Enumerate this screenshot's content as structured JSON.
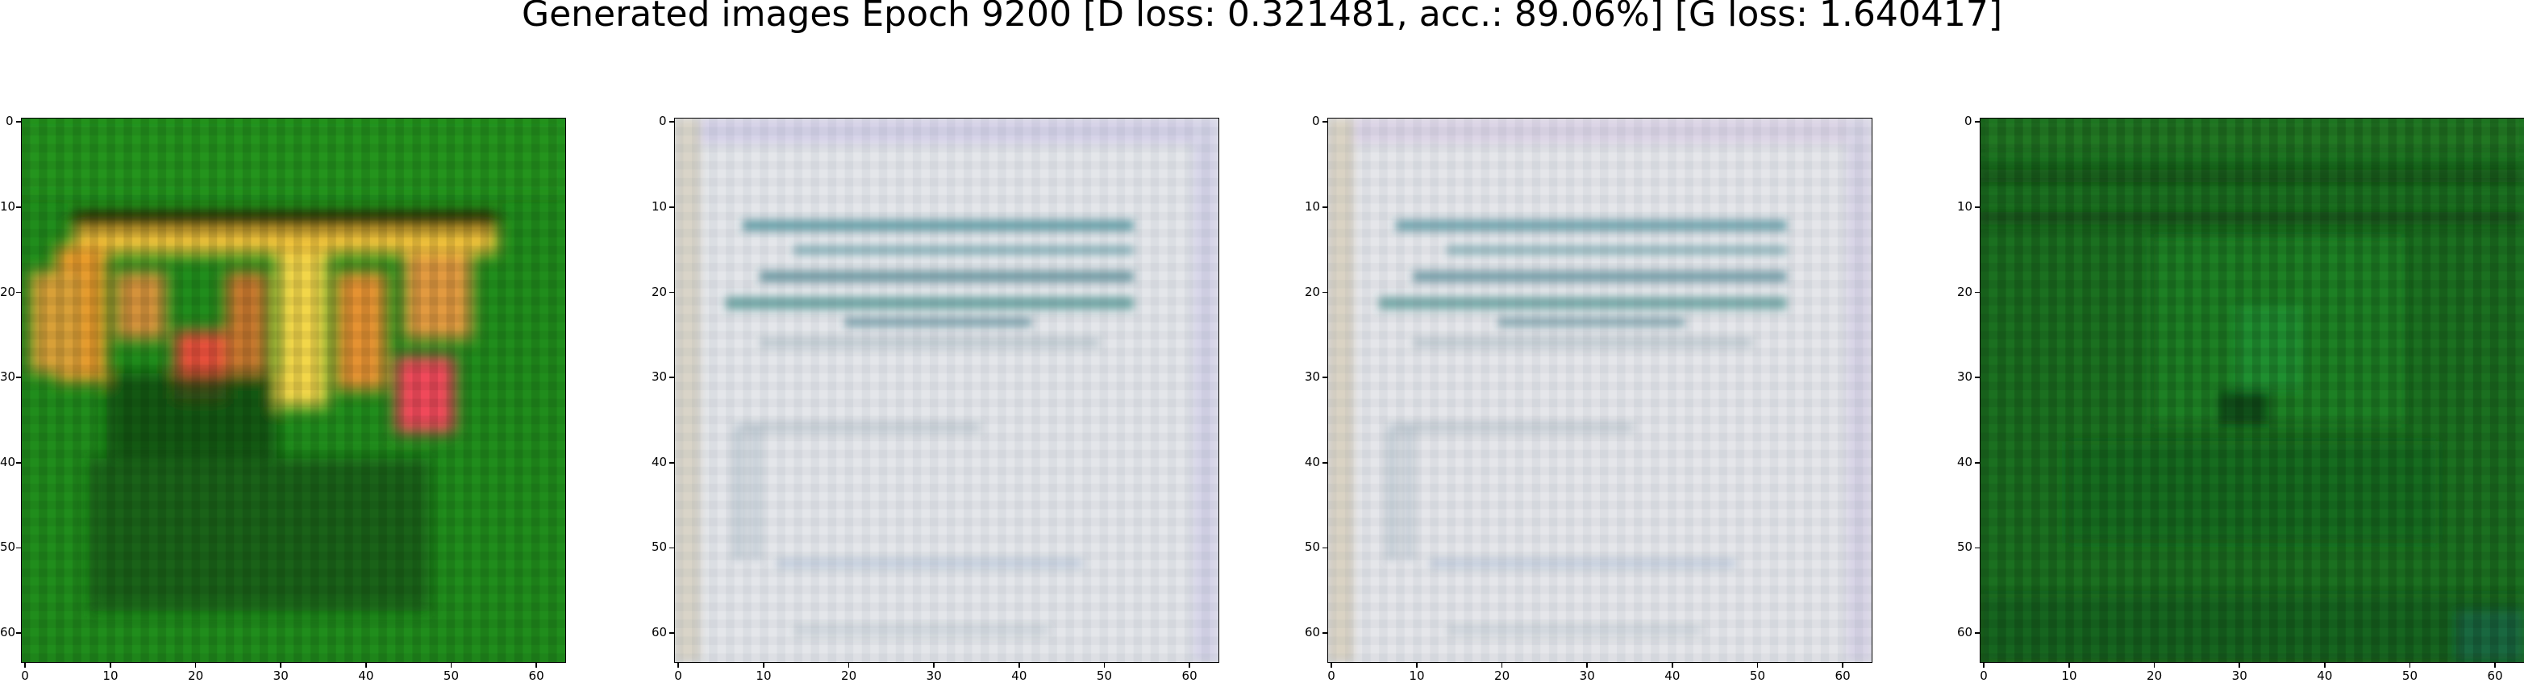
{
  "figure": {
    "title": "Generated images Epoch 9200 [D loss: 0.321481, acc.: 89.06%] [G loss: 1.640417]"
  },
  "axes": {
    "x_ticks": [
      "0",
      "10",
      "20",
      "30",
      "40",
      "50",
      "60"
    ],
    "y_ticks": [
      "0",
      "10",
      "20",
      "30",
      "40",
      "50",
      "60"
    ],
    "image_size": 64
  },
  "panels": [
    {
      "id": "panel-1",
      "content": "orange-yellow-red blobs on green background",
      "dominant_color": "#1e8a1a"
    },
    {
      "id": "panel-2",
      "content": "pale grayish-white noisy texture with teal streaks",
      "dominant_color": "#e4e6ea"
    },
    {
      "id": "panel-3",
      "content": "pale grayish-white noisy texture with teal streaks",
      "dominant_color": "#e4e6ea"
    },
    {
      "id": "panel-4",
      "content": "dark green noisy texture with vertical striations",
      "dominant_color": "#1a6e1e"
    }
  ]
}
